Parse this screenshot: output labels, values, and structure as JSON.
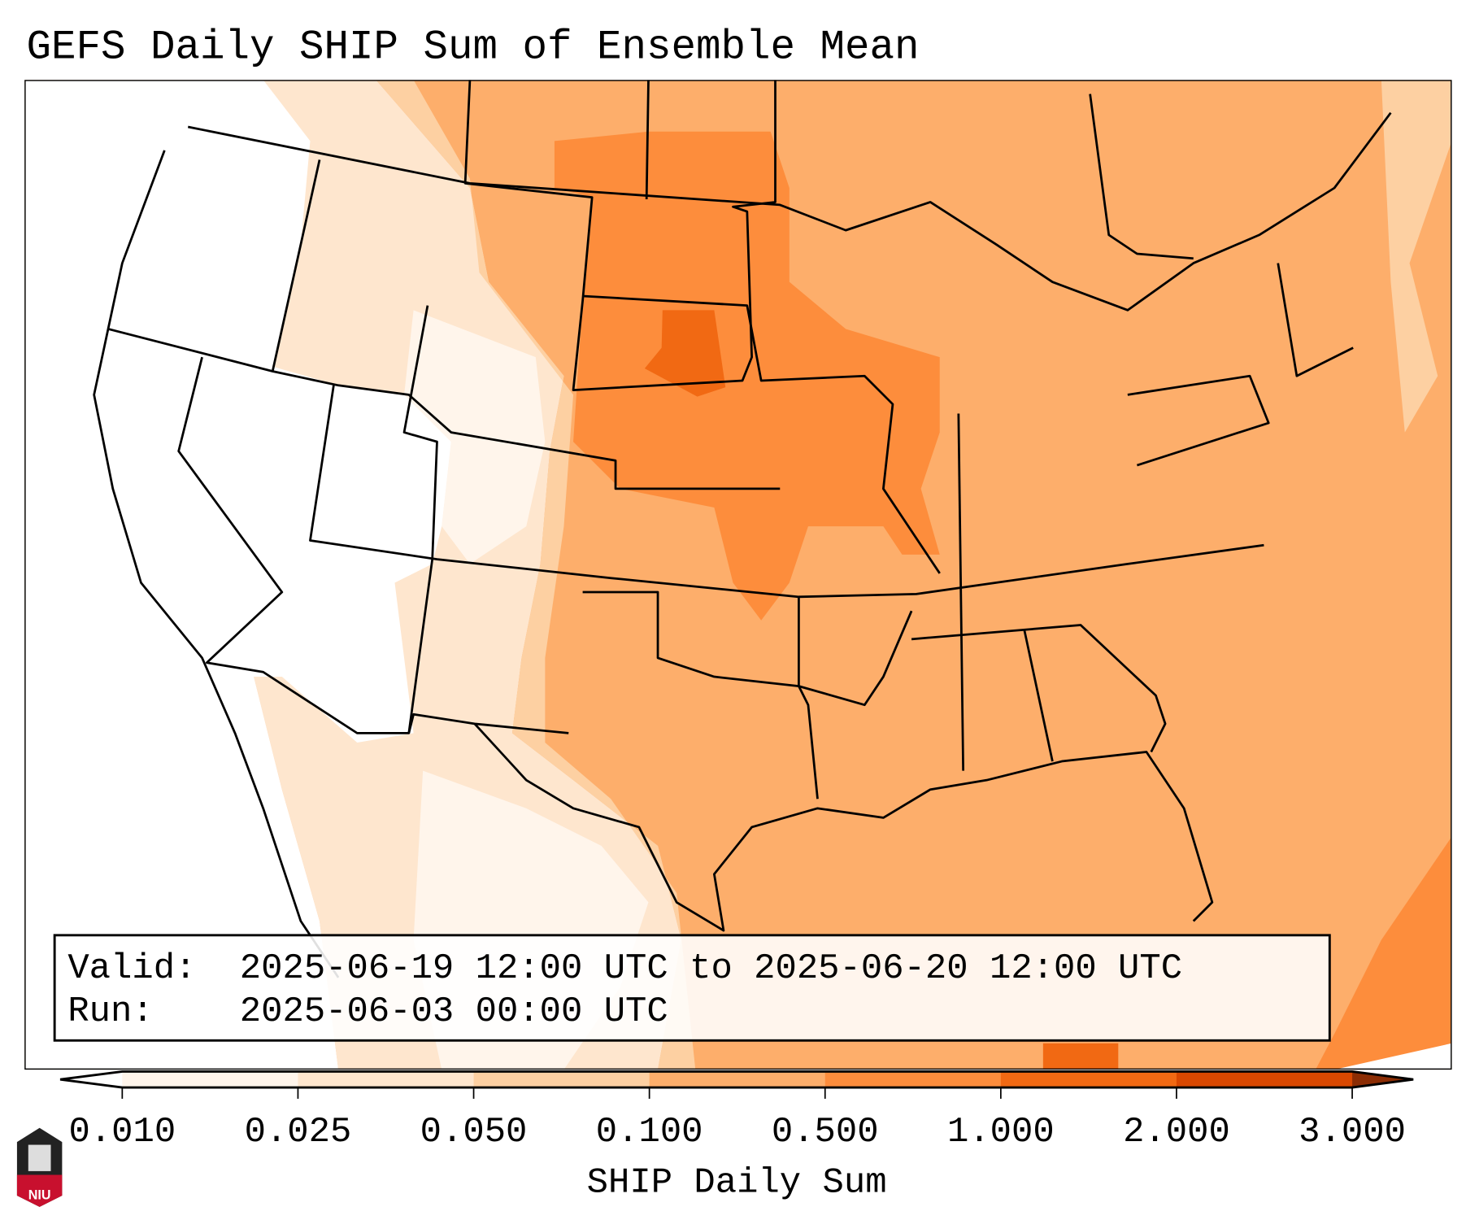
{
  "title": "GEFS Daily SHIP Sum of Ensemble Mean",
  "info_box": {
    "valid_label": "Valid:",
    "valid_value": "2025-06-19 12:00 UTC to 2025-06-20 12:00 UTC",
    "run_label": "Run:",
    "run_value": "2025-06-03 00:00 UTC"
  },
  "colorbar": {
    "label": "SHIP Daily Sum",
    "ticks": [
      "0.010",
      "0.025",
      "0.050",
      "0.100",
      "0.500",
      "1.000",
      "2.000",
      "3.000"
    ],
    "colors": [
      "#fff5eb",
      "#fee6ce",
      "#fdd0a2",
      "#fdae6b",
      "#fd8d3c",
      "#f16913",
      "#d94801",
      "#8c2d04"
    ],
    "under_color": "#ffffff"
  },
  "logo": {
    "text": "NIU"
  }
}
